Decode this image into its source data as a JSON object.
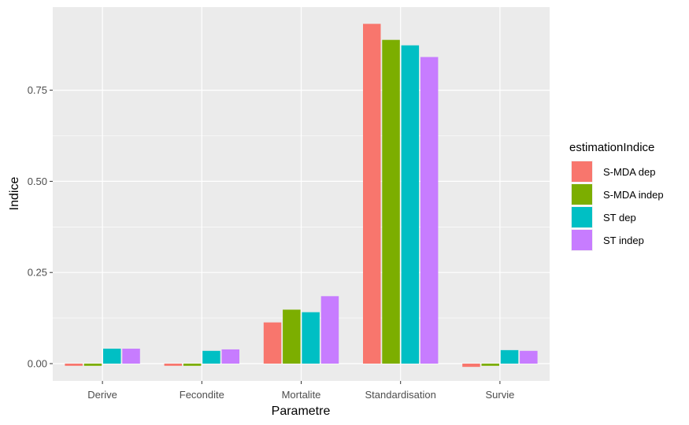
{
  "chart_data": {
    "type": "bar",
    "xlabel": "Parametre",
    "ylabel": "Indice",
    "categories": [
      "Derive",
      "Fecondite",
      "Mortalite",
      "Standardisation",
      "Survie"
    ],
    "series": [
      {
        "name": "S-MDA dep",
        "color": "#F8766D",
        "values": [
          -0.006,
          -0.006,
          0.113,
          0.932,
          -0.009
        ]
      },
      {
        "name": "S-MDA indep",
        "color": "#7CAE00",
        "values": [
          -0.006,
          -0.006,
          0.148,
          0.888,
          -0.006
        ]
      },
      {
        "name": "ST dep",
        "color": "#00BFC4",
        "values": [
          0.041,
          0.035,
          0.141,
          0.873,
          0.037
        ]
      },
      {
        "name": "ST indep",
        "color": "#C77CFF",
        "values": [
          0.041,
          0.039,
          0.185,
          0.841,
          0.035
        ]
      }
    ],
    "ylim": [
      -0.05,
      0.98
    ],
    "yticks": [
      0.0,
      0.25,
      0.5,
      0.75
    ],
    "ytick_labels": [
      "0.00",
      "0.25",
      "0.50",
      "0.75"
    ],
    "legend": {
      "title": "estimationIndice",
      "position": "right"
    },
    "grid": true,
    "panel_background": "#EBEBEB",
    "grid_color": "#FFFFFF"
  }
}
